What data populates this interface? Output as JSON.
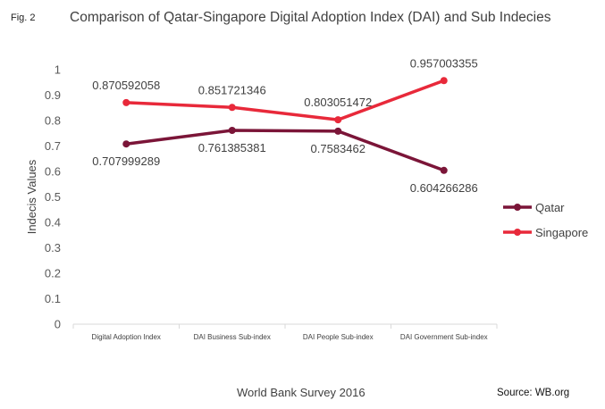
{
  "figure": {
    "label": "Fig. 2",
    "footer": "World Bank Survey 2016",
    "source": "Source: WB.org"
  },
  "chart_data": {
    "type": "line",
    "title": "Comparison of Qatar-Singapore Digital Adoption Index (DAI) and Sub Indecies",
    "xlabel": "",
    "ylabel": "Indecis Values",
    "ylim": [
      0,
      1
    ],
    "yticks": [
      0,
      0.1,
      0.2,
      0.3,
      0.4,
      0.5,
      0.6,
      0.7,
      0.8,
      0.9,
      1
    ],
    "yticklabels": [
      "0",
      "0.1",
      "0.2",
      "0.3",
      "0.4",
      "0.5",
      "0.6",
      "0.7",
      "0.8",
      "0.9",
      "1"
    ],
    "grid": false,
    "legend": "right",
    "categories": [
      "Digital Adoption Index",
      "DAI Business Sub-index",
      "DAI People Sub-index",
      "DAI Government Sub-index"
    ],
    "series": [
      {
        "name": "Qatar",
        "color": "#7B1538",
        "values": [
          0.707999289,
          0.761385381,
          0.7583462,
          0.604266286
        ],
        "labels": [
          "0.707999289",
          "0.761385381",
          "0.7583462",
          "0.604266286"
        ],
        "label_position": "below"
      },
      {
        "name": "Singapore",
        "color": "#E8293A",
        "values": [
          0.870592058,
          0.851721346,
          0.803051472,
          0.957003355
        ],
        "labels": [
          "0.870592058",
          "0.851721346",
          "0.803051472",
          "0.957003355"
        ],
        "label_position": "above"
      }
    ]
  }
}
